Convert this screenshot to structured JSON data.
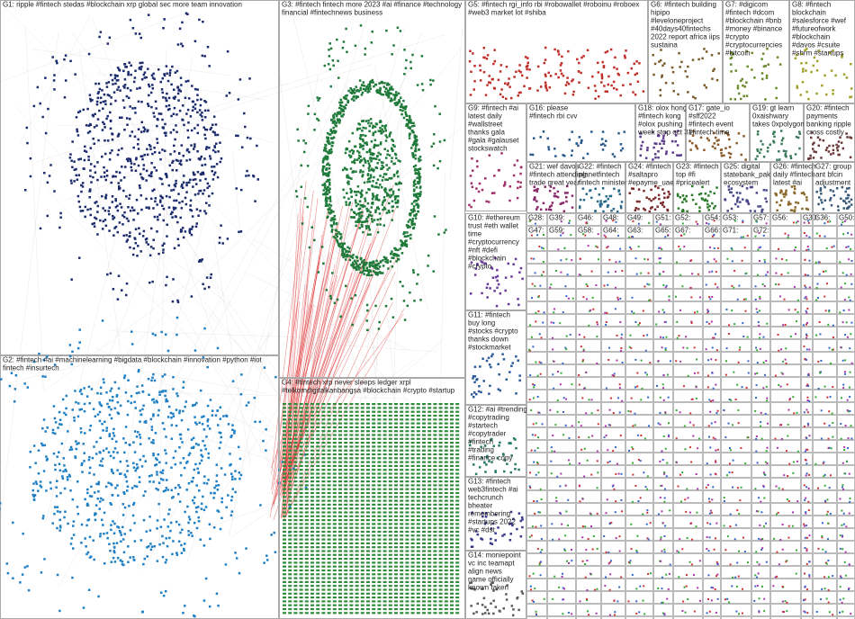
{
  "groups": [
    {
      "lines": [
        "G1: ripple #fintech stedas #blockchain xrp global sec more team innovation"
      ]
    },
    {
      "lines": [
        "G2: #fintech #ai #machinelearning #bigdata #blockchain #innovation #python #iot",
        "fintech #insurtech"
      ]
    },
    {
      "lines": [
        "G3: #fintech fintech more 2023 #ai #finance #technology",
        "financial #fintechnews business"
      ]
    },
    {
      "lines": [
        "G4: #fintech xrp never sleeps ledger xrpl",
        "#telkomdigitalkanbangsa #blockchain #crypto #startup"
      ]
    },
    {
      "lines": [
        "G5: #fintech rgi_info rbi #robowallet #roboinu #roboex",
        "#web3 market lot #shiba"
      ]
    },
    {
      "lines": [
        "G6: #fintech building",
        "hipipo",
        "#leveloneproject",
        "#40days40fintechs",
        "2022 report africa iips",
        "sustaina"
      ]
    },
    {
      "lines": [
        "G7: #digicom",
        "#fintech #dcom",
        "#blockchain #bnb",
        "#money #binance",
        "#crypto",
        "#cryptocurrencies",
        "#bitcoin"
      ]
    },
    {
      "lines": [
        "G8: #fintech",
        "blockchain",
        "#salesforce #wef",
        "#futureofwork",
        "#blockchain",
        "#davos #csuite",
        "#shrm #startups"
      ]
    },
    {
      "lines": [
        "G9: #fintech #ai",
        "latest daily",
        "#wallstreet",
        "thanks gala",
        "#gala #galauset",
        "stockswatch"
      ]
    },
    {
      "lines": [
        "G16: please",
        "#fintech rbi cvv"
      ]
    },
    {
      "lines": [
        "G18: olox hong",
        "#fintech kong",
        "#olox pushing",
        "week stop oct 31"
      ]
    },
    {
      "lines": [
        "G17: gate_io",
        "#sff2022",
        "#fintech event",
        "#fintech time"
      ]
    },
    {
      "lines": [
        "G19: gt learn",
        "0xaishwary",
        "takes 0xpolygon"
      ]
    },
    {
      "lines": [
        "G20: #fintech",
        "payments",
        "banking ripple",
        "cross costly"
      ]
    },
    {
      "lines": [
        "G21: wef davos",
        "#fintech attending",
        "trade great year"
      ]
    },
    {
      "lines": [
        "G22: #fintech",
        "planetfintech",
        "fintech minister"
      ]
    },
    {
      "lines": [
        "G24: #fintech",
        "#saltapro",
        "#epayme_uae"
      ]
    },
    {
      "lines": [
        "G23: #fintech",
        "top #fi",
        "#pricealert"
      ]
    },
    {
      "lines": [
        "G25: digital",
        "statebank_pak",
        "ecosystem"
      ]
    },
    {
      "lines": [
        "G26: #fintech",
        "daily #fintech",
        "latest #ai"
      ]
    },
    {
      "lines": [
        "G27: group",
        "ant bfcin",
        "adjustment"
      ]
    },
    {
      "lines": [
        "G10: #ethereum",
        "trust #eth wallet",
        "time",
        "#cryptocurrency",
        "#nft #defi",
        "#blockchain",
        "#crypto"
      ]
    },
    {
      "lines": [
        "G11: #fintech",
        "buy long",
        "#stocks #crypto",
        "thanks down",
        "#stockmarket"
      ]
    },
    {
      "lines": [
        "G12: #ai #trending",
        "#copytrading",
        "#startech",
        "#copytrader",
        "#fintech",
        "#trading",
        "#finance copy"
      ]
    },
    {
      "lines": [
        "G13: #fintech",
        "web3fintech #ai",
        "techcrunch",
        "bheater",
        "remembering",
        "#startups 2022",
        "#vc #dst"
      ]
    },
    {
      "lines": [
        "G14: moniepoint",
        "vc inc teamapt",
        "align news",
        "name officially",
        "known taken"
      ]
    }
  ],
  "cells": [
    "G28:",
    "G39:",
    "G46:",
    "G48:",
    "G49:",
    "G51:",
    "G52:",
    "G54:",
    "G53:",
    "G57:",
    "G56:",
    "G30:",
    "G36:",
    "G50:",
    "G47:",
    "G59:",
    "G58:",
    "G64:",
    "G63:",
    "G65:",
    "G67:",
    "G66:",
    "G71:",
    "G72:"
  ]
}
